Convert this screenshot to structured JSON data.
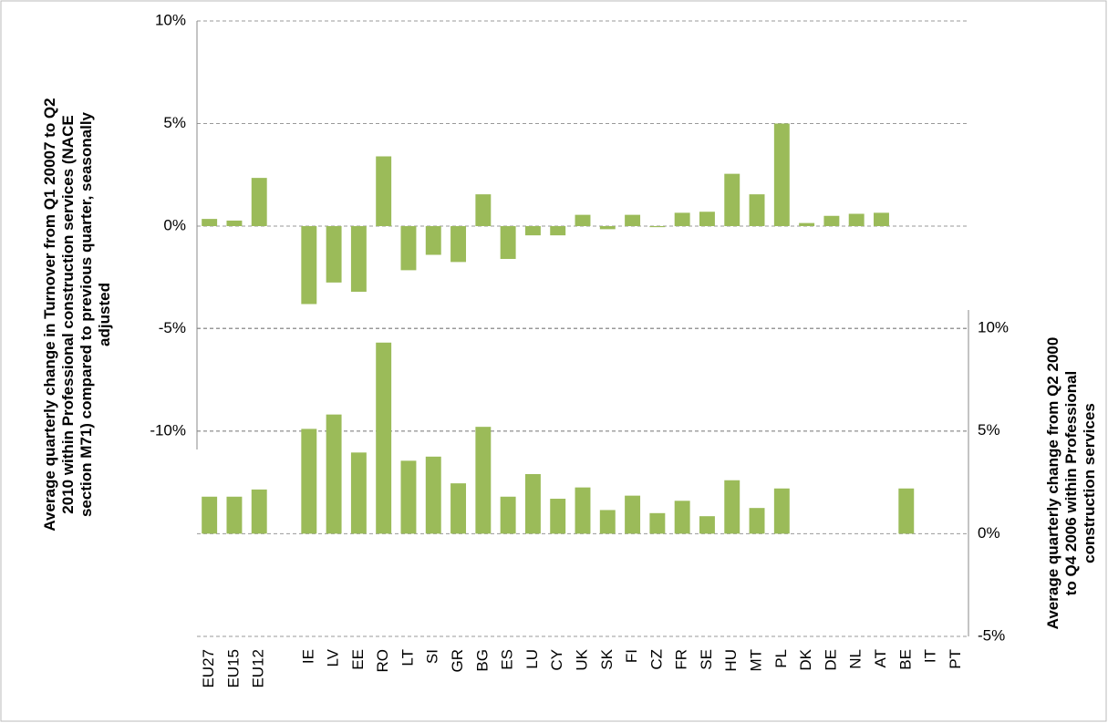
{
  "chart_data": {
    "type": "bar",
    "y_label": "Average quarterly change in Turnover from Q1 20007 to Q2 2010 within Professional construction services (NACE section M71) compared to previous quarter, seasonally adjusted",
    "y2_label": "Average quarterly change from Q2 2000 to Q4 2006 within Professional construction services",
    "categories": [
      "EU27",
      "EU15",
      "EU12",
      null,
      "IE",
      "LV",
      "EE",
      "RO",
      "LT",
      "SI",
      "GR",
      "BG",
      "ES",
      "LU",
      "CY",
      "UK",
      "SK",
      "FI",
      "CZ",
      "FR",
      "SE",
      "HU",
      "MT",
      "PL",
      "DK",
      "DE",
      "NL",
      "AT",
      "BE",
      "IT",
      "PT"
    ],
    "ylim": [
      -10,
      10
    ],
    "yticks": [
      {
        "value": -10,
        "label": "-10%"
      },
      {
        "value": -5,
        "label": "-5%"
      },
      {
        "value": 0,
        "label": "0%"
      },
      {
        "value": 5,
        "label": "5%"
      },
      {
        "value": 10,
        "label": "10%"
      }
    ],
    "y2lim": [
      -5,
      10
    ],
    "y2ticks": [
      {
        "value": -5,
        "label": "-5%"
      },
      {
        "value": 0,
        "label": "0%"
      },
      {
        "value": 5,
        "label": "5%"
      },
      {
        "value": 10,
        "label": "10%"
      }
    ],
    "grid": true,
    "series": [
      {
        "color": "#9bbb59",
        "values": [
          0.35,
          0.27,
          2.35,
          null,
          -3.8,
          -2.75,
          -3.2,
          3.4,
          -2.15,
          -1.4,
          -1.75,
          1.55,
          -1.6,
          -0.45,
          -0.45,
          0.55,
          -0.15,
          0.55,
          -0.05,
          0.65,
          0.7,
          2.55,
          1.55,
          5.0,
          0.15,
          0.5,
          0.6,
          0.65,
          null,
          null,
          null
        ]
      },
      {
        "color": "#9bbb59",
        "axis": "y2",
        "values": [
          1.8,
          1.8,
          2.15,
          null,
          5.1,
          5.8,
          3.95,
          9.3,
          3.55,
          3.75,
          2.45,
          5.2,
          1.8,
          2.9,
          1.7,
          2.25,
          1.15,
          1.85,
          1.0,
          1.6,
          0.85,
          2.6,
          1.25,
          2.2,
          null,
          null,
          null,
          null,
          2.2,
          null,
          null
        ]
      }
    ]
  }
}
